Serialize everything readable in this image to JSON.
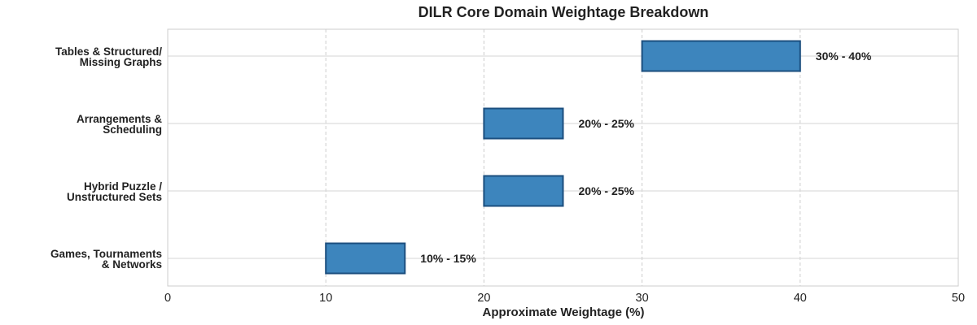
{
  "chart_data": {
    "type": "bar",
    "orientation": "horizontal",
    "title": "DILR Core Domain Weightage Breakdown",
    "xlabel": "Approximate Weightage (%)",
    "ylabel": "",
    "xlim": [
      0,
      50
    ],
    "xticks": [
      "0",
      "10",
      "20",
      "30",
      "40",
      "50"
    ],
    "grid": true,
    "categories": [
      [
        "Tables & Structured/",
        "Missing Graphs"
      ],
      [
        "Arrangements &",
        "Scheduling"
      ],
      [
        "Hybrid Puzzle /",
        "Unstructured Sets"
      ],
      [
        "Games, Tournaments",
        "& Networks"
      ]
    ],
    "ranges": [
      [
        30,
        40
      ],
      [
        20,
        25
      ],
      [
        20,
        25
      ],
      [
        10,
        15
      ]
    ],
    "data_labels": [
      "30% - 40%",
      "20% - 25%",
      "20% - 25%",
      "10% - 15%"
    ],
    "colors": {
      "bar_fill": "#3d85bd",
      "bar_edge": "#1c4f7f"
    }
  }
}
